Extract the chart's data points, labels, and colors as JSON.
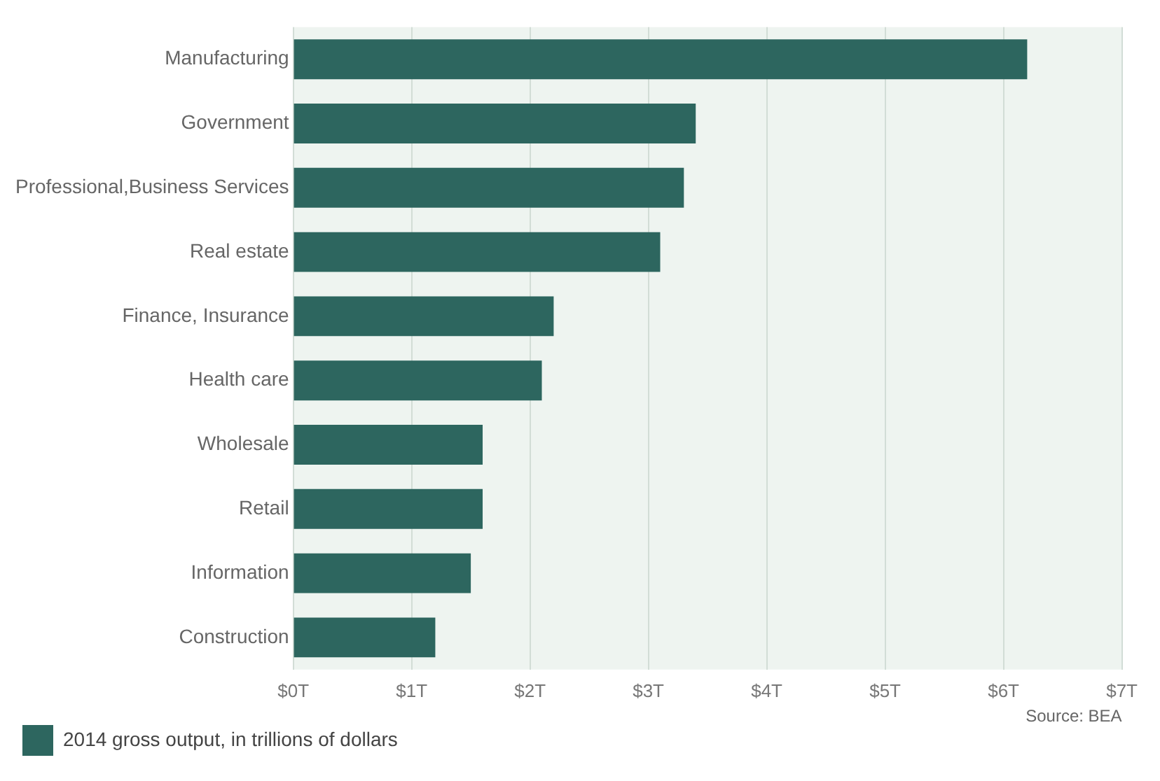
{
  "chart_data": {
    "type": "bar",
    "orientation": "horizontal",
    "categories": [
      "Manufacturing",
      "Government",
      "Professional,Business Services",
      "Real estate",
      "Finance, Insurance",
      "Health care",
      "Wholesale",
      "Retail",
      "Information",
      "Construction"
    ],
    "series": [
      {
        "name": "2014 gross output, in trillions of dollars",
        "color": "#2d665f",
        "values": [
          6.2,
          3.4,
          3.3,
          3.1,
          2.2,
          2.1,
          1.6,
          1.6,
          1.5,
          1.2
        ]
      }
    ],
    "xlim": [
      0,
      7
    ],
    "xticks": [
      {
        "value": 0,
        "label": "$0T"
      },
      {
        "value": 1,
        "label": "$1T"
      },
      {
        "value": 2,
        "label": "$2T"
      },
      {
        "value": 3,
        "label": "$3T"
      },
      {
        "value": 4,
        "label": "$4T"
      },
      {
        "value": 5,
        "label": "$5T"
      },
      {
        "value": 6,
        "label": "$6T"
      },
      {
        "value": 7,
        "label": "$7T"
      }
    ],
    "grid": "x",
    "legend": "bottom left",
    "annotations": [
      "Source: BEA"
    ]
  }
}
